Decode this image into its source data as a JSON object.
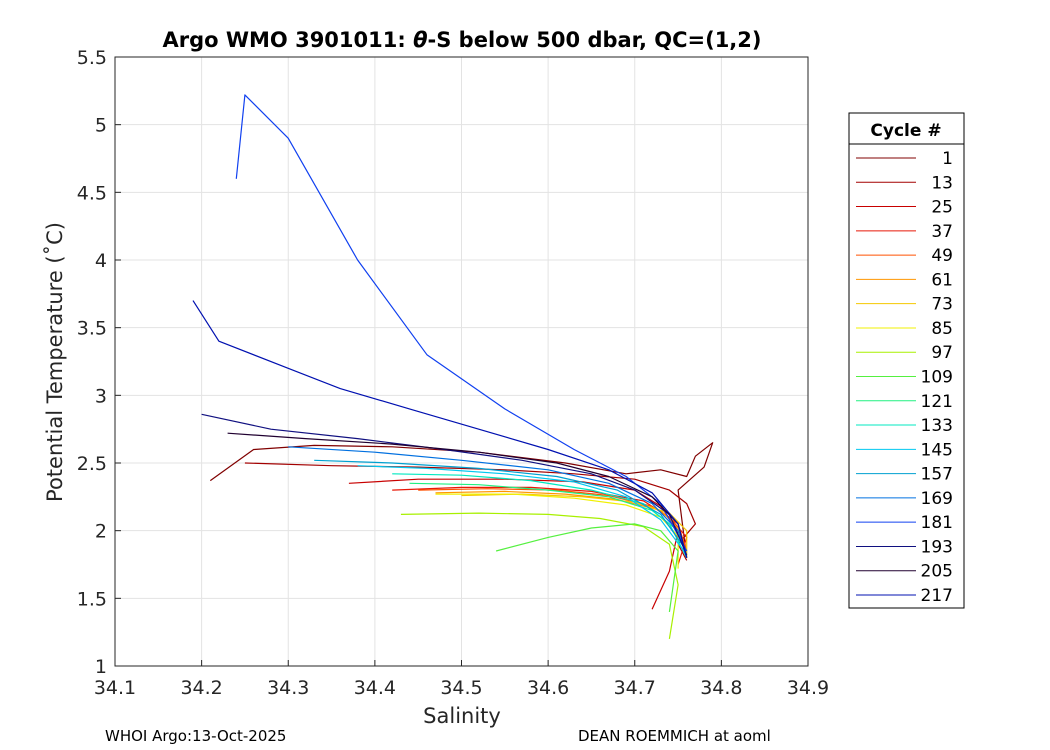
{
  "chart_data": {
    "type": "line",
    "title_prefix": "Argo WMO 3901011: ",
    "title_theta": "θ",
    "title_suffix": "-S below 500 dbar,  QC=(1,2)",
    "xlabel": "Salinity",
    "ylabel": "Potential Temperature (˚C)",
    "xlim": [
      34.1,
      34.9
    ],
    "ylim": [
      1,
      5.5
    ],
    "xticks": [
      "34.1",
      "34.2",
      "34.3",
      "34.4",
      "34.5",
      "34.6",
      "34.7",
      "34.8",
      "34.9"
    ],
    "yticks": [
      "1",
      "1.5",
      "2",
      "2.5",
      "3",
      "3.5",
      "4",
      "4.5",
      "5",
      "5.5"
    ],
    "grid": true,
    "legend": {
      "title": "Cycle #",
      "placement": "outside-right",
      "entries": [
        {
          "label": "1",
          "color": "#800000"
        },
        {
          "label": "13",
          "color": "#a30000"
        },
        {
          "label": "25",
          "color": "#c80000"
        },
        {
          "label": "37",
          "color": "#e81808"
        },
        {
          "label": "49",
          "color": "#ff5000"
        },
        {
          "label": "61",
          "color": "#ff9600"
        },
        {
          "label": "73",
          "color": "#f5c800"
        },
        {
          "label": "85",
          "color": "#f0f000"
        },
        {
          "label": "97",
          "color": "#a8f000"
        },
        {
          "label": "109",
          "color": "#55f040"
        },
        {
          "label": "121",
          "color": "#20f080"
        },
        {
          "label": "133",
          "color": "#00e8c0"
        },
        {
          "label": "145",
          "color": "#00c8f0"
        },
        {
          "label": "157",
          "color": "#00a0d0"
        },
        {
          "label": "169",
          "color": "#0070e0"
        },
        {
          "label": "181",
          "color": "#1040f0"
        },
        {
          "label": "193",
          "color": "#101080"
        },
        {
          "label": "205",
          "color": "#200030"
        },
        {
          "label": "217",
          "color": "#0010b0"
        }
      ]
    },
    "series": [
      {
        "name": "cycle 1 group",
        "color": "#800000",
        "x": [
          34.21,
          34.26,
          34.33,
          34.42,
          34.52,
          34.62,
          34.69,
          34.73,
          34.76,
          34.77,
          34.79,
          34.78,
          34.75,
          34.76
        ],
        "y": [
          2.37,
          2.6,
          2.63,
          2.62,
          2.58,
          2.5,
          2.42,
          2.45,
          2.4,
          2.55,
          2.65,
          2.47,
          2.3,
          1.8
        ]
      },
      {
        "name": "cycle 13 group",
        "color": "#a30000",
        "x": [
          34.25,
          34.35,
          34.45,
          34.55,
          34.63,
          34.7,
          34.74,
          34.76,
          34.77,
          34.75,
          34.76
        ],
        "y": [
          2.5,
          2.48,
          2.47,
          2.45,
          2.42,
          2.38,
          2.3,
          2.2,
          2.05,
          1.9,
          1.78
        ]
      },
      {
        "name": "cycle 25 group",
        "color": "#c80000",
        "x": [
          34.37,
          34.45,
          34.55,
          34.64,
          34.7,
          34.73,
          34.75,
          34.74,
          34.72
        ],
        "y": [
          2.35,
          2.38,
          2.38,
          2.36,
          2.3,
          2.18,
          2.0,
          1.7,
          1.42
        ]
      },
      {
        "name": "cycle 37 group",
        "color": "#e81808",
        "x": [
          34.42,
          34.5,
          34.58,
          34.65,
          34.71,
          34.74,
          34.76,
          34.75
        ],
        "y": [
          2.3,
          2.32,
          2.32,
          2.29,
          2.22,
          2.1,
          1.95,
          1.75
        ]
      },
      {
        "name": "cycle 49 group",
        "color": "#ff5000",
        "x": [
          34.45,
          34.53,
          34.61,
          34.67,
          34.72,
          34.75,
          34.76
        ],
        "y": [
          2.3,
          2.31,
          2.3,
          2.26,
          2.18,
          2.05,
          1.85
        ]
      },
      {
        "name": "cycle 61 group",
        "color": "#ff9600",
        "x": [
          34.47,
          34.55,
          34.62,
          34.68,
          34.73,
          34.75,
          34.76
        ],
        "y": [
          2.28,
          2.29,
          2.27,
          2.23,
          2.15,
          2.02,
          1.82
        ]
      },
      {
        "name": "cycle 73 group",
        "color": "#f5c800",
        "x": [
          34.5,
          34.57,
          34.64,
          34.7,
          34.74,
          34.76,
          34.76
        ],
        "y": [
          2.26,
          2.27,
          2.25,
          2.21,
          2.13,
          2.0,
          1.8
        ]
      },
      {
        "name": "cycle 85 group",
        "color": "#f0f000",
        "x": [
          34.47,
          34.56,
          34.63,
          34.69,
          34.73,
          34.75,
          34.75
        ],
        "y": [
          2.27,
          2.27,
          2.24,
          2.19,
          2.1,
          1.96,
          1.72
        ]
      },
      {
        "name": "cycle 97 group",
        "color": "#a8f000",
        "x": [
          34.43,
          34.52,
          34.6,
          34.66,
          34.71,
          34.74,
          34.75,
          34.74
        ],
        "y": [
          2.12,
          2.13,
          2.12,
          2.09,
          2.03,
          1.9,
          1.6,
          1.2
        ]
      },
      {
        "name": "cycle 109 group",
        "color": "#55f040",
        "x": [
          34.54,
          34.6,
          34.65,
          34.7,
          34.73,
          34.75,
          34.74
        ],
        "y": [
          1.85,
          1.95,
          2.02,
          2.05,
          2.0,
          1.85,
          1.4
        ]
      },
      {
        "name": "cycle 121 group",
        "color": "#20f080",
        "x": [
          34.44,
          34.52,
          34.6,
          34.67,
          34.72,
          34.75,
          34.76
        ],
        "y": [
          2.35,
          2.34,
          2.3,
          2.25,
          2.15,
          2.0,
          1.8
        ]
      },
      {
        "name": "cycle 133 group",
        "color": "#00e8c0",
        "x": [
          34.42,
          34.5,
          34.58,
          34.65,
          34.71,
          34.74,
          34.76
        ],
        "y": [
          2.42,
          2.41,
          2.37,
          2.3,
          2.2,
          2.05,
          1.8
        ]
      },
      {
        "name": "cycle 145 group",
        "color": "#00c8f0",
        "x": [
          34.38,
          34.46,
          34.55,
          34.63,
          34.69,
          34.73,
          34.76
        ],
        "y": [
          2.48,
          2.46,
          2.42,
          2.36,
          2.25,
          2.08,
          1.82
        ]
      },
      {
        "name": "cycle 157 group",
        "color": "#00a0d0",
        "x": [
          34.33,
          34.42,
          34.52,
          34.61,
          34.68,
          34.73,
          34.76
        ],
        "y": [
          2.52,
          2.5,
          2.46,
          2.4,
          2.3,
          2.12,
          1.85
        ]
      },
      {
        "name": "cycle 169 group",
        "color": "#0070e0",
        "x": [
          34.3,
          34.4,
          34.5,
          34.6,
          34.67,
          34.72,
          34.75,
          34.76
        ],
        "y": [
          2.62,
          2.58,
          2.52,
          2.45,
          2.35,
          2.2,
          2.0,
          1.8
        ]
      },
      {
        "name": "cycle 181 group",
        "color": "#1040f0",
        "x": [
          34.24,
          34.25,
          34.3,
          34.38,
          34.46,
          34.55,
          34.63,
          34.69,
          34.73,
          34.76
        ],
        "y": [
          4.6,
          5.22,
          4.9,
          4.0,
          3.3,
          2.9,
          2.6,
          2.4,
          2.2,
          1.85
        ]
      },
      {
        "name": "cycle 193 group",
        "color": "#101080",
        "x": [
          34.2,
          34.28,
          34.38,
          34.48,
          34.57,
          34.65,
          34.7,
          34.74,
          34.76
        ],
        "y": [
          2.86,
          2.75,
          2.68,
          2.6,
          2.52,
          2.42,
          2.3,
          2.12,
          1.82
        ]
      },
      {
        "name": "cycle 205 group",
        "color": "#200030",
        "x": [
          34.23,
          34.32,
          34.42,
          34.52,
          34.61,
          34.67,
          34.72,
          34.75,
          34.76
        ],
        "y": [
          2.72,
          2.68,
          2.64,
          2.58,
          2.5,
          2.4,
          2.25,
          2.05,
          1.8
        ]
      },
      {
        "name": "cycle 217 group",
        "color": "#0010b0",
        "x": [
          34.19,
          34.22,
          34.3,
          34.36,
          34.44,
          34.52,
          34.6,
          34.67,
          34.72,
          34.75,
          34.76
        ],
        "y": [
          3.7,
          3.4,
          3.2,
          3.05,
          2.9,
          2.75,
          2.6,
          2.45,
          2.28,
          2.05,
          1.8
        ]
      }
    ]
  },
  "footer": {
    "left": "WHOI Argo:13-Oct-2025",
    "right": "DEAN ROEMMICH at aoml"
  }
}
